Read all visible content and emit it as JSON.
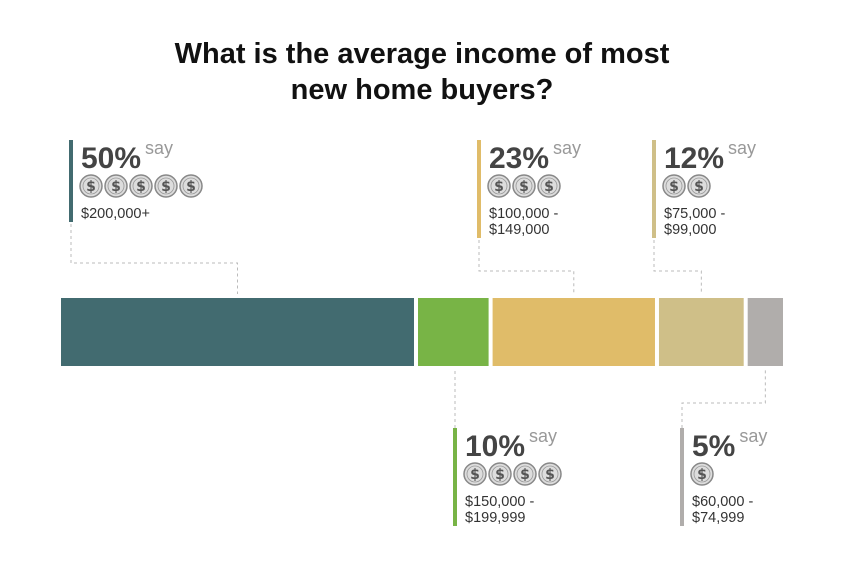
{
  "chart_data": {
    "type": "bar",
    "title": "What is the average income of most new home buyers?",
    "title_lines": [
      "What is the average income of most",
      "new home buyers?"
    ],
    "say_label": "say",
    "coin_symbol": "$",
    "categories": [
      "$200,000+",
      "$150,000 - $199,999",
      "$100,000 - $149,000",
      "$75,000 - $99,000",
      "$60,000 - $74,999"
    ],
    "values": [
      50,
      10,
      23,
      12,
      5
    ],
    "segments": [
      {
        "pct_label": "50%",
        "value": 50,
        "coins": 5,
        "range_lines": [
          "$200,000+"
        ],
        "color": "#426b70",
        "label_side": "top"
      },
      {
        "pct_label": "10%",
        "value": 10,
        "coins": 4,
        "range_lines": [
          "$150,000 -",
          "$199,999"
        ],
        "color": "#78b446",
        "label_side": "bottom"
      },
      {
        "pct_label": "23%",
        "value": 23,
        "coins": 3,
        "range_lines": [
          "$100,000 -",
          "$149,000"
        ],
        "color": "#e0bc69",
        "label_side": "top"
      },
      {
        "pct_label": "12%",
        "value": 12,
        "coins": 2,
        "range_lines": [
          "$75,000 -",
          "$99,000"
        ],
        "color": "#cfbf88",
        "label_side": "top"
      },
      {
        "pct_label": "5%",
        "value": 5,
        "coins": 1,
        "range_lines": [
          "$60,000 -",
          "$74,999"
        ],
        "color": "#b0adab",
        "label_side": "bottom"
      }
    ]
  }
}
